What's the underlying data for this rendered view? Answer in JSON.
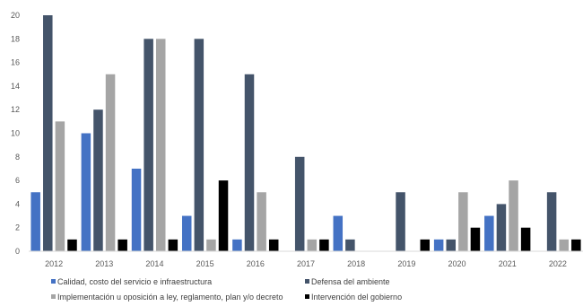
{
  "chart_data": {
    "type": "bar",
    "title": "",
    "xlabel": "",
    "ylabel": "",
    "ylim": [
      0,
      20
    ],
    "yticks": [
      0,
      2,
      4,
      6,
      8,
      10,
      12,
      14,
      16,
      18,
      20
    ],
    "grid": false,
    "legend_position": "bottom",
    "categories": [
      "2012",
      "2013",
      "2014",
      "2015",
      "2016",
      "2017",
      "2018",
      "2019",
      "2020",
      "2021",
      "2022"
    ],
    "series": [
      {
        "name": "Calidad, costo del servicio e infraestructura",
        "color": "#4472C4",
        "values": [
          5,
          10,
          7,
          3,
          1,
          0,
          3,
          0,
          1,
          3,
          0
        ]
      },
      {
        "name": "Defensa del ambiente",
        "color": "#44546A",
        "values": [
          20,
          12,
          18,
          18,
          15,
          8,
          1,
          5,
          1,
          4,
          5
        ]
      },
      {
        "name": "Implementación u oposición a ley, reglamento, plan y/o decreto",
        "color": "#A5A5A5",
        "values": [
          11,
          15,
          18,
          1,
          5,
          1,
          0,
          0,
          5,
          6,
          1
        ]
      },
      {
        "name": "Intervención del gobierno",
        "color": "#000000",
        "values": [
          1,
          1,
          1,
          6,
          1,
          1,
          0,
          1,
          2,
          2,
          1
        ]
      }
    ]
  }
}
